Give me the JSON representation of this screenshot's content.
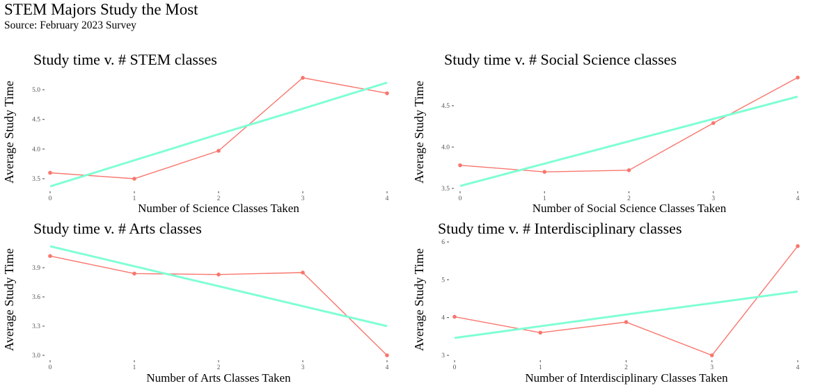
{
  "title": "STEM Majors Study the Most",
  "subtitle": "Source: February 2023 Survey",
  "colors": {
    "observed": "#F8766D",
    "trend": "#7FFFD4",
    "tick_text": "#555555"
  },
  "chart_data": [
    {
      "type": "line",
      "title": "Study time v. # STEM classes",
      "xlabel": "Number of Science Classes Taken",
      "ylabel": "Average Study Time",
      "x": [
        0,
        1,
        2,
        3,
        4
      ],
      "xticks": [
        "0",
        "1",
        "2",
        "3",
        "4"
      ],
      "yticks": [
        3.5,
        4.0,
        4.5,
        5.0
      ],
      "ytick_labels": [
        "3.5",
        "4.0",
        "4.5",
        "5.0"
      ],
      "ylim": [
        3.37,
        5.2
      ],
      "series": [
        {
          "name": "observed",
          "values": [
            3.6,
            3.5,
            3.97,
            5.2,
            4.94
          ]
        },
        {
          "name": "trend",
          "values": [
            3.37,
            3.81,
            4.25,
            4.68,
            5.12
          ]
        }
      ],
      "grid": false
    },
    {
      "type": "line",
      "title": "Study time v. # Social Science classes",
      "xlabel": "Number of Social Science Classes Taken",
      "ylabel": "Average Study Time",
      "x": [
        0,
        1,
        2,
        3,
        4
      ],
      "xticks": [
        "0",
        "1",
        "2",
        "3",
        "4"
      ],
      "yticks": [
        3.5,
        4.0,
        4.5
      ],
      "ytick_labels": [
        "3.5",
        "4.0",
        "4.5"
      ],
      "ylim": [
        3.5,
        4.84
      ],
      "series": [
        {
          "name": "observed",
          "values": [
            3.78,
            3.7,
            3.72,
            4.29,
            4.84
          ]
        },
        {
          "name": "trend",
          "values": [
            3.53,
            3.8,
            4.07,
            4.34,
            4.61
          ]
        }
      ],
      "grid": false
    },
    {
      "type": "line",
      "title": "Study time v. # Arts classes",
      "xlabel": "Number of Arts Classes Taken",
      "ylabel": "Average Study Time",
      "x": [
        0,
        1,
        2,
        3,
        4
      ],
      "xticks": [
        "0",
        "1",
        "2",
        "3",
        "4"
      ],
      "yticks": [
        3.0,
        3.3,
        3.6,
        3.9
      ],
      "ytick_labels": [
        "3.0",
        "3.3",
        "3.6",
        "3.9"
      ],
      "ylim": [
        3.0,
        4.12
      ],
      "series": [
        {
          "name": "observed",
          "values": [
            4.02,
            3.84,
            3.83,
            3.85,
            3.0
          ]
        },
        {
          "name": "trend",
          "values": [
            4.12,
            3.915,
            3.71,
            3.505,
            3.3
          ]
        }
      ],
      "grid": false
    },
    {
      "type": "line",
      "title": "Study time v. # Interdisciplinary classes",
      "xlabel": "Number of Interdisciplinary Classes Taken",
      "ylabel": "Average Study Time",
      "x": [
        0,
        1,
        2,
        3,
        4
      ],
      "xticks": [
        "0",
        "1",
        "2",
        "3",
        "4"
      ],
      "yticks": [
        3,
        4,
        5,
        6
      ],
      "ytick_labels": [
        "3",
        "4",
        "5",
        "6"
      ],
      "ylim": [
        3.0,
        5.89
      ],
      "series": [
        {
          "name": "observed",
          "values": [
            4.02,
            3.6,
            3.88,
            3.0,
            5.89
          ]
        },
        {
          "name": "trend",
          "values": [
            3.46,
            3.77,
            4.08,
            4.38,
            4.69
          ]
        }
      ],
      "grid": false
    }
  ]
}
